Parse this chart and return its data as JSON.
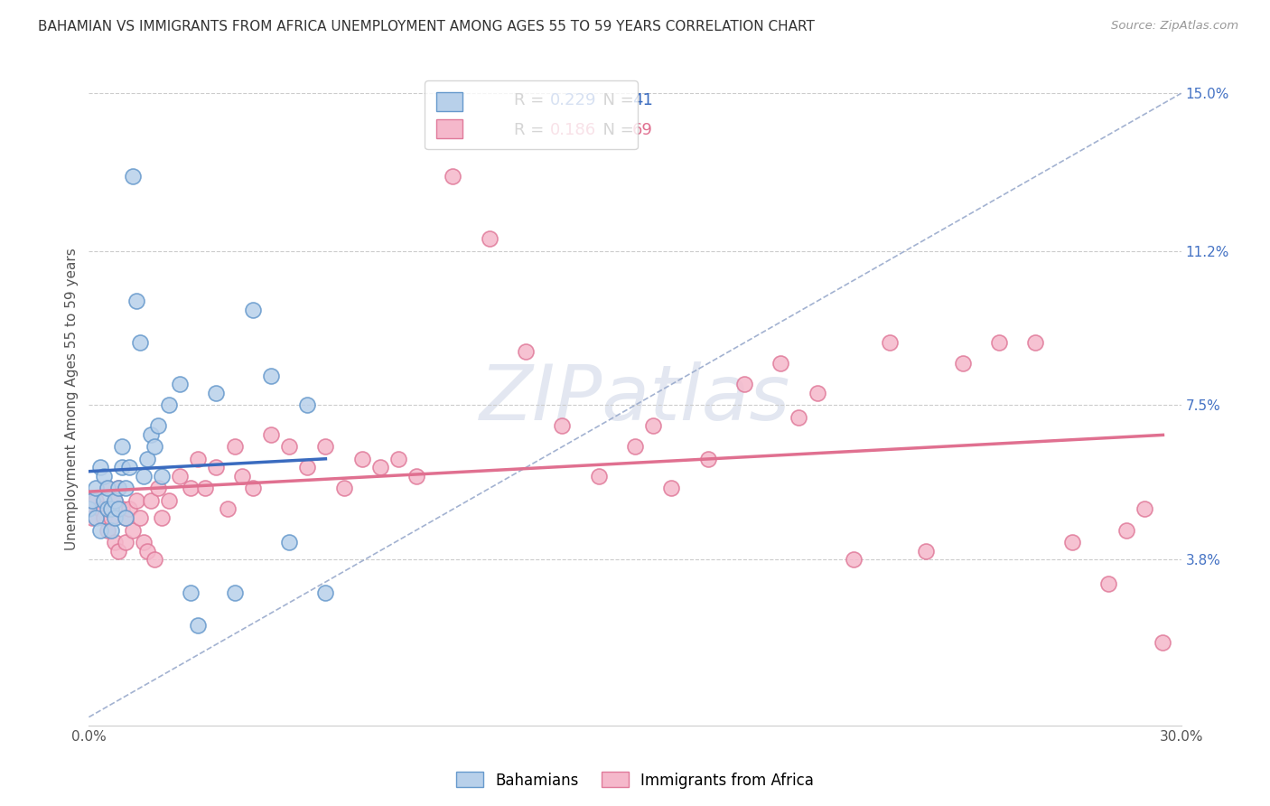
{
  "title": "BAHAMIAN VS IMMIGRANTS FROM AFRICA UNEMPLOYMENT AMONG AGES 55 TO 59 YEARS CORRELATION CHART",
  "source": "Source: ZipAtlas.com",
  "ylabel": "Unemployment Among Ages 55 to 59 years",
  "xlim": [
    0.0,
    0.3
  ],
  "ylim": [
    -0.002,
    0.155
  ],
  "bahamians_R": 0.229,
  "bahamians_N": 41,
  "africa_R": 0.186,
  "africa_N": 69,
  "bahamian_fill": "#b8d0ea",
  "bahamian_edge": "#6699cc",
  "africa_fill": "#f5b8cb",
  "africa_edge": "#e07a9a",
  "bahamian_line": "#3a6bbf",
  "africa_line": "#e07090",
  "ref_line": "#99aacc",
  "watermark_color": "#ccd5e6",
  "bahamians_x": [
    0.0,
    0.001,
    0.002,
    0.002,
    0.003,
    0.003,
    0.004,
    0.004,
    0.005,
    0.005,
    0.006,
    0.006,
    0.007,
    0.007,
    0.008,
    0.008,
    0.009,
    0.009,
    0.01,
    0.01,
    0.011,
    0.012,
    0.013,
    0.014,
    0.015,
    0.016,
    0.017,
    0.018,
    0.019,
    0.02,
    0.022,
    0.025,
    0.028,
    0.03,
    0.035,
    0.04,
    0.045,
    0.05,
    0.055,
    0.06,
    0.065
  ],
  "bahamians_y": [
    0.05,
    0.052,
    0.048,
    0.055,
    0.06,
    0.045,
    0.052,
    0.058,
    0.05,
    0.055,
    0.045,
    0.05,
    0.048,
    0.052,
    0.055,
    0.05,
    0.06,
    0.065,
    0.048,
    0.055,
    0.06,
    0.13,
    0.1,
    0.09,
    0.058,
    0.062,
    0.068,
    0.065,
    0.07,
    0.058,
    0.075,
    0.08,
    0.03,
    0.022,
    0.078,
    0.03,
    0.098,
    0.082,
    0.042,
    0.075,
    0.03
  ],
  "africa_x": [
    0.0,
    0.001,
    0.002,
    0.003,
    0.004,
    0.005,
    0.005,
    0.006,
    0.006,
    0.007,
    0.007,
    0.008,
    0.008,
    0.009,
    0.01,
    0.01,
    0.011,
    0.012,
    0.013,
    0.014,
    0.015,
    0.016,
    0.017,
    0.018,
    0.019,
    0.02,
    0.022,
    0.025,
    0.028,
    0.03,
    0.032,
    0.035,
    0.038,
    0.04,
    0.042,
    0.045,
    0.05,
    0.055,
    0.06,
    0.065,
    0.07,
    0.075,
    0.08,
    0.085,
    0.09,
    0.1,
    0.11,
    0.12,
    0.13,
    0.14,
    0.15,
    0.155,
    0.16,
    0.17,
    0.18,
    0.19,
    0.195,
    0.2,
    0.21,
    0.22,
    0.23,
    0.24,
    0.25,
    0.26,
    0.27,
    0.28,
    0.285,
    0.29,
    0.295
  ],
  "africa_y": [
    0.052,
    0.048,
    0.052,
    0.05,
    0.048,
    0.055,
    0.045,
    0.05,
    0.048,
    0.042,
    0.052,
    0.04,
    0.055,
    0.05,
    0.048,
    0.042,
    0.05,
    0.045,
    0.052,
    0.048,
    0.042,
    0.04,
    0.052,
    0.038,
    0.055,
    0.048,
    0.052,
    0.058,
    0.055,
    0.062,
    0.055,
    0.06,
    0.05,
    0.065,
    0.058,
    0.055,
    0.068,
    0.065,
    0.06,
    0.065,
    0.055,
    0.062,
    0.06,
    0.062,
    0.058,
    0.13,
    0.115,
    0.088,
    0.07,
    0.058,
    0.065,
    0.07,
    0.055,
    0.062,
    0.08,
    0.085,
    0.072,
    0.078,
    0.038,
    0.09,
    0.04,
    0.085,
    0.09,
    0.09,
    0.042,
    0.032,
    0.045,
    0.05,
    0.018
  ]
}
